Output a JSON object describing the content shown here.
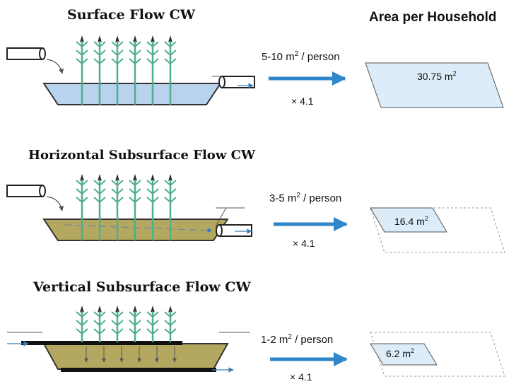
{
  "header": {
    "area_title": "Area per Household"
  },
  "sections": [
    {
      "title": "Surface Flow CW",
      "rate_prefix": "5-10 m",
      "rate_suffix": " / person",
      "multiplier": "× 4.1",
      "area_label": "30.75 m"
    },
    {
      "title": "Horizontal Subsurface Flow CW",
      "rate_prefix": "3-5 m",
      "rate_suffix": " / person",
      "multiplier": "× 4.1",
      "area_label": "16.4 m"
    },
    {
      "title": "Vertical Subsurface Flow CW",
      "rate_prefix": "1-2 m",
      "rate_suffix": " / person",
      "multiplier": "× 4.1",
      "area_label": "6.2 m"
    }
  ],
  "superscript": "2",
  "colors": {
    "water": "#b9d3ee",
    "soil": "#b4a860",
    "plant": "#4fae8c",
    "plant_tip": "#2b2b2b",
    "arrow": "#2f86c8",
    "area_fill": "#dcecf8",
    "outline": "#555555"
  }
}
